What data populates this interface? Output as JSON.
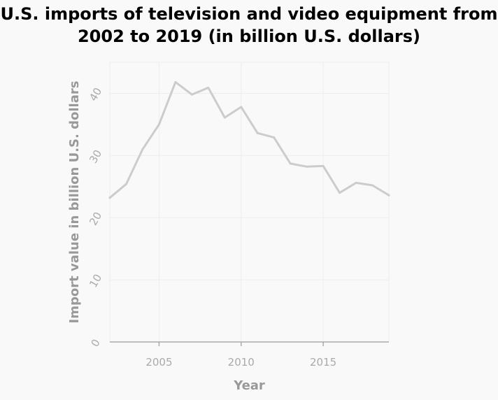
{
  "chart_data": {
    "type": "line",
    "title": "U.S. imports of television and video equipment from 2002 to 2019 (in billion U.S. dollars)",
    "xlabel": "Year",
    "ylabel": "Import value in billion U.S. dollars",
    "xlim": [
      2002,
      2019
    ],
    "ylim": [
      0,
      45
    ],
    "x_ticks": [
      2005,
      2010,
      2015
    ],
    "y_ticks": [
      0,
      10,
      20,
      30,
      40
    ],
    "grid": true,
    "series": [
      {
        "x": [
          2002,
          2003,
          2004,
          2005,
          2006,
          2007,
          2008,
          2009,
          2010,
          2011,
          2012,
          2013,
          2014,
          2015,
          2016,
          2017,
          2018,
          2019
        ],
        "values": [
          23.2,
          25.4,
          31.0,
          35.0,
          41.8,
          39.8,
          40.9,
          36.1,
          37.8,
          33.6,
          32.9,
          28.7,
          28.2,
          28.3,
          24.0,
          25.6,
          25.2,
          23.6
        ]
      }
    ],
    "colors": {
      "line": "#cccccc",
      "grid": "#ededed",
      "axis": "#aaaaaa",
      "background": "#f9f9f9"
    }
  }
}
